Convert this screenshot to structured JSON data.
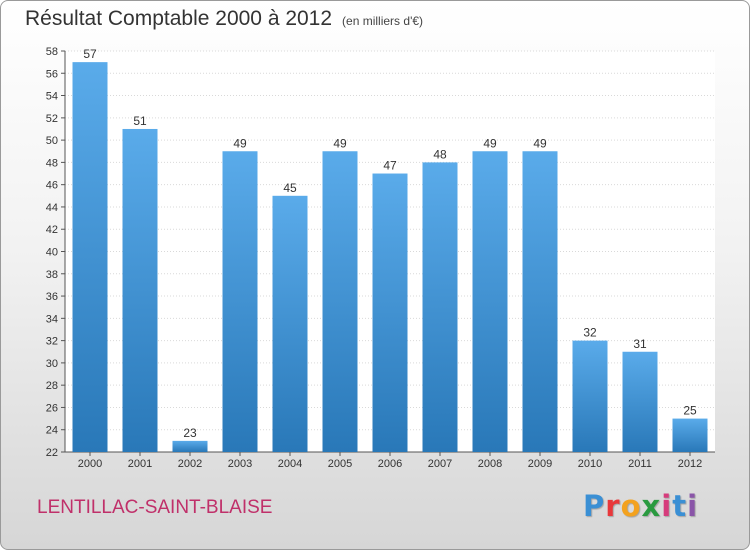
{
  "colors": {
    "bar_light": "#5aabea",
    "bar_dark": "#2978b8",
    "commune_text": "#c0306a",
    "brand_p": "#3a8fd4",
    "brand_r": "#e8383b",
    "brand_o": "#f3a21f",
    "brand_x": "#2a9a40",
    "brand_i1": "#d63c7c",
    "brand_t": "#3a8fd4",
    "brand_i2": "#8a55a8"
  },
  "footer": {
    "commune": "LENTILLAC-SAINT-BLAISE"
  },
  "brand": {
    "letters": [
      "P",
      "r",
      "o",
      "x",
      "i",
      "t",
      "i"
    ]
  },
  "chart_data": {
    "type": "bar",
    "title": "Résultat Comptable 2000 à 2012",
    "subtitle": "(en milliers d'€)",
    "xlabel": "",
    "ylabel": "",
    "categories": [
      "2000",
      "2001",
      "2002",
      "2003",
      "2004",
      "2005",
      "2006",
      "2007",
      "2008",
      "2009",
      "2010",
      "2011",
      "2012"
    ],
    "values": [
      57,
      51,
      23,
      49,
      45,
      49,
      47,
      48,
      49,
      49,
      32,
      31,
      25
    ],
    "ylim": [
      22,
      58
    ],
    "yticks": [
      22,
      24,
      26,
      28,
      30,
      32,
      34,
      36,
      38,
      40,
      42,
      44,
      46,
      48,
      50,
      52,
      54,
      56,
      58
    ],
    "grid": true,
    "data_labels": true
  }
}
